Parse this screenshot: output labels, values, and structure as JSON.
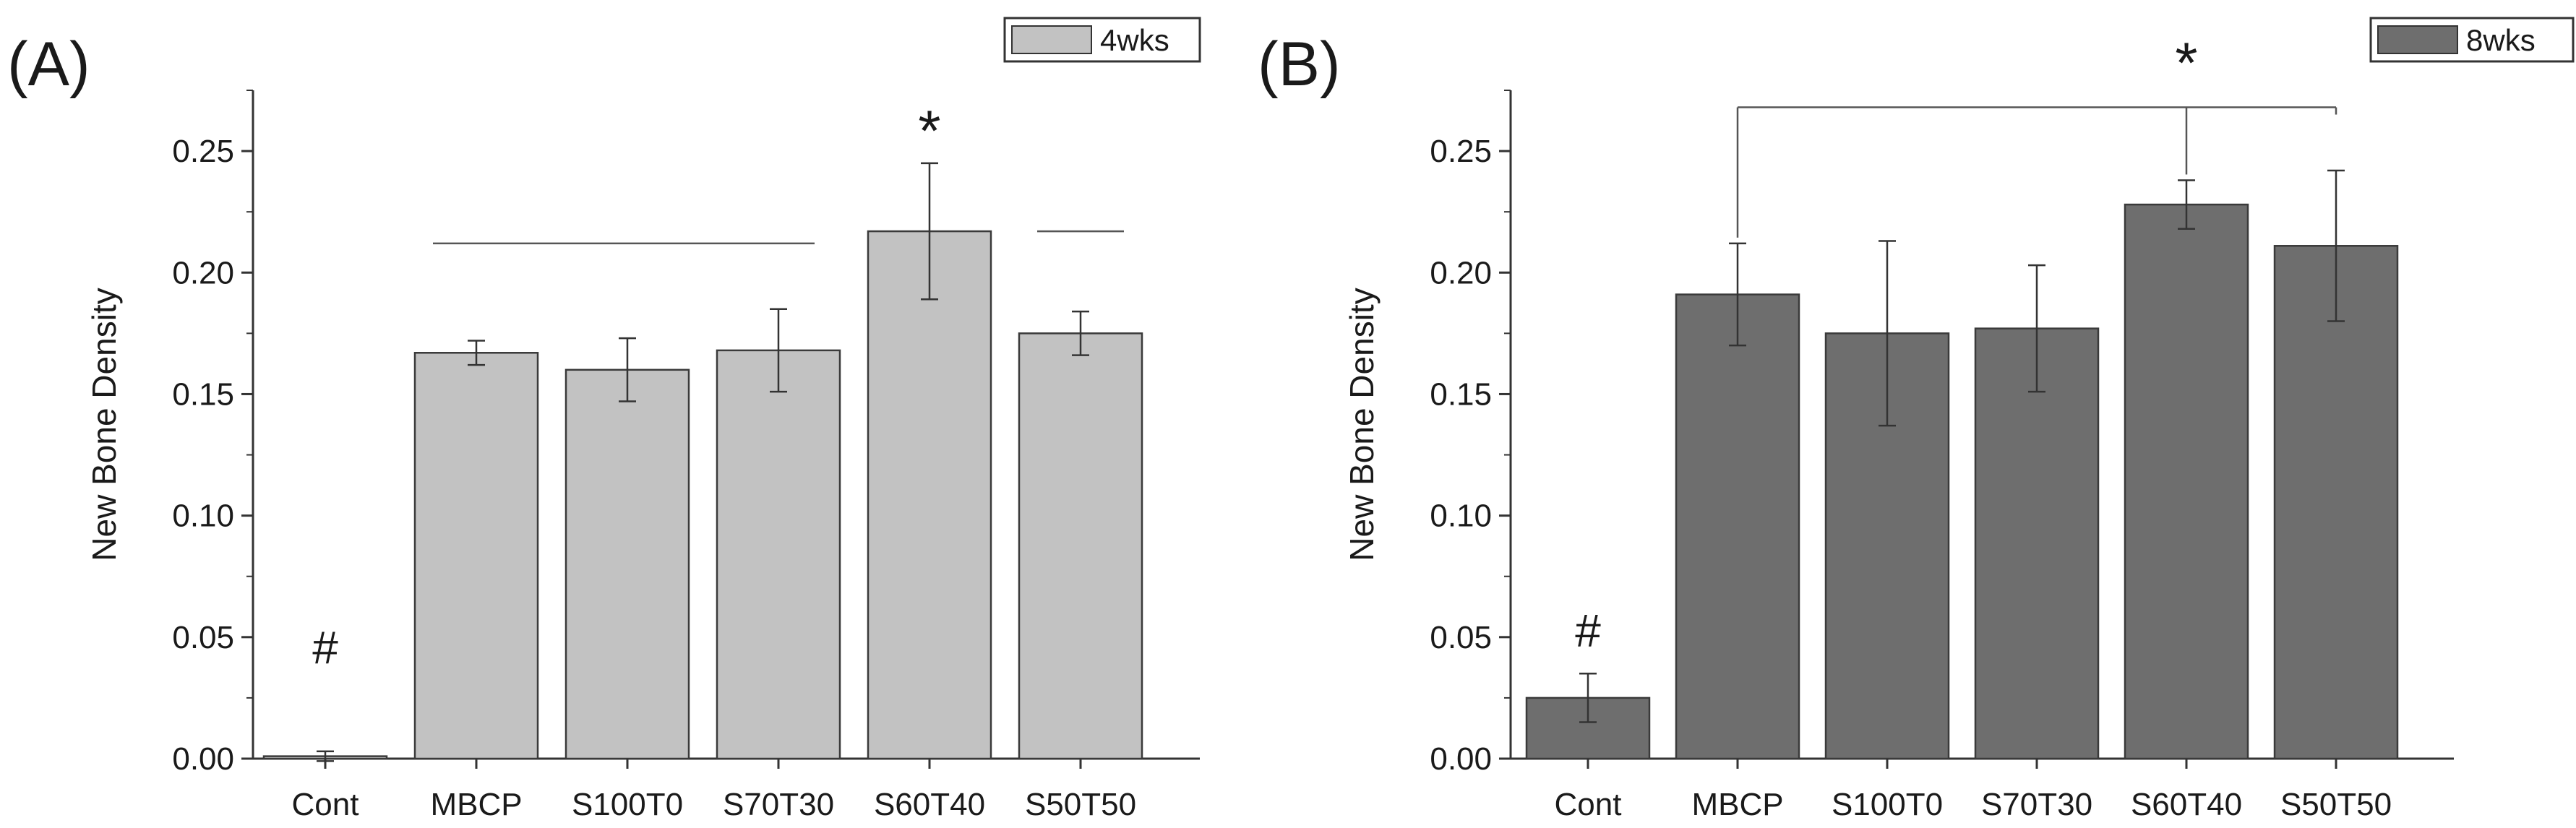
{
  "chart_data": [
    {
      "type": "bar",
      "panel_label": "(A)",
      "legend": {
        "label": "4wks",
        "placement": "top-right"
      },
      "bar_color": "#c2c2c2",
      "categories": [
        "Cont",
        "MBCP",
        "S100T0",
        "S70T30",
        "S60T40",
        "S50T50"
      ],
      "values": [
        0.001,
        0.167,
        0.16,
        0.168,
        0.217,
        0.175
      ],
      "errors": [
        0.002,
        0.005,
        0.013,
        0.017,
        0.028,
        0.009
      ],
      "ylabel": "New Bone Density",
      "xlabel": "",
      "ylim": [
        0,
        0.275
      ],
      "yticks": [
        "0.00",
        "0.05",
        "0.10",
        "0.15",
        "0.20",
        "0.25"
      ],
      "annotations": [
        {
          "text": "#",
          "category": "Cont",
          "y": 0.045
        },
        {
          "text": "*",
          "category": "S60T40",
          "y": 0.262
        }
      ],
      "significance_lines": [
        {
          "from": "MBCP",
          "to": "S70T30",
          "y": 0.212
        },
        {
          "from": "S50T50",
          "to": "S50T50",
          "y": 0.217
        }
      ],
      "grid": false
    },
    {
      "type": "bar",
      "panel_label": "(B)",
      "legend": {
        "label": "8wks",
        "placement": "top-right"
      },
      "bar_color": "#6e6e6e",
      "categories": [
        "Cont",
        "MBCP",
        "S100T0",
        "S70T30",
        "S60T40",
        "S50T50"
      ],
      "values": [
        0.025,
        0.191,
        0.175,
        0.177,
        0.228,
        0.211
      ],
      "errors": [
        0.01,
        0.021,
        0.038,
        0.026,
        0.01,
        0.031
      ],
      "ylabel": "New Bone Density",
      "xlabel": "",
      "ylim": [
        0,
        0.275
      ],
      "yticks": [
        "0.00",
        "0.05",
        "0.10",
        "0.15",
        "0.20",
        "0.25"
      ],
      "annotations": [
        {
          "text": "#",
          "category": "Cont",
          "y": 0.052
        },
        {
          "text": "*",
          "category": "S60T40",
          "y": 0.29
        }
      ],
      "significance_lines": [
        {
          "from": "MBCP",
          "to": "S50T50",
          "y": 0.268
        }
      ],
      "grid": false
    }
  ]
}
